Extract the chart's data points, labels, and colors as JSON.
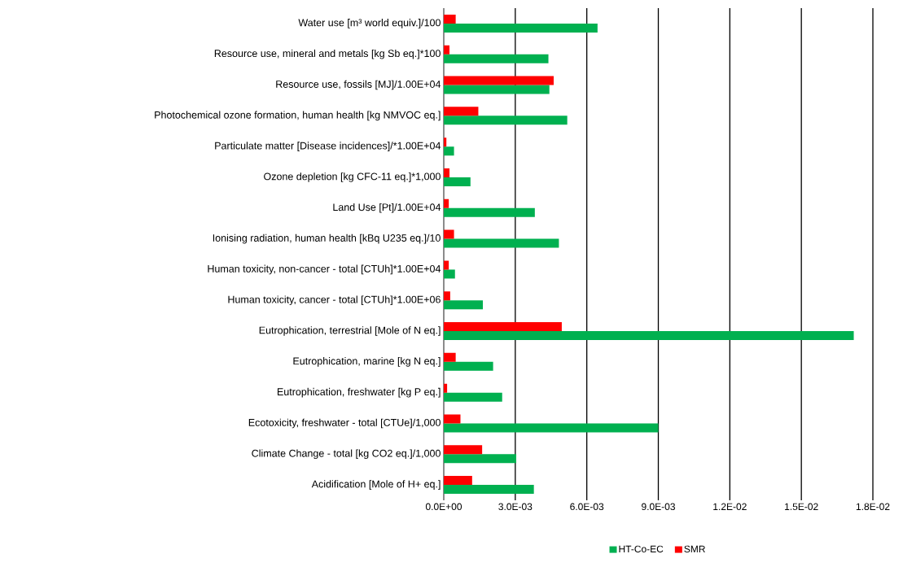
{
  "chart_data": {
    "type": "bar",
    "orientation": "horizontal",
    "categories": [
      "Water use [m³ world equiv.]/100",
      "Resource use, mineral and metals [kg Sb eq.]*100",
      "Resource use, fossils  [MJ]/1.00E+04",
      "Photochemical ozone formation, human health  [kg NMVOC eq.]",
      "Particulate matter [Disease incidences]/*1.00E+04",
      "Ozone depletion [kg CFC-11 eq.]*1,000",
      "Land Use [Pt]/1.00E+04",
      "Ionising radiation, human health [kBq U235 eq.]/10",
      "Human toxicity, non-cancer - total [CTUh]*1.00E+04",
      "Human toxicity, cancer - total [CTUh]*1.00E+06",
      "Eutrophication, terrestrial  [Mole of N eq.]",
      "Eutrophication, marine  [kg N eq.]",
      "Eutrophication, freshwater [kg P eq.]",
      "Ecotoxicity, freshwater - total [CTUe]/1,000",
      "Climate Change - total [kg CO2 eq.]/1,000",
      "Acidification  [Mole of H+ eq.]"
    ],
    "series": [
      {
        "name": "HT-Co-EC",
        "color": "#00b050",
        "values": [
          0.00645,
          0.00439,
          0.00443,
          0.00518,
          0.00043,
          0.00112,
          0.00382,
          0.00483,
          0.00047,
          0.00164,
          0.0172,
          0.00207,
          0.00245,
          0.009,
          0.00304,
          0.00378
        ]
      },
      {
        "name": "SMR",
        "color": "#ff0000",
        "values": [
          0.0005,
          0.00024,
          0.00461,
          0.00145,
          0.00011,
          0.00024,
          0.00021,
          0.00043,
          0.00021,
          0.00027,
          0.00495,
          0.0005,
          0.00014,
          0.0007,
          0.00161,
          0.00119
        ]
      }
    ],
    "xlim": [
      0,
      0.018
    ],
    "xticks": [
      {
        "value": 0,
        "label": "0.0E+00"
      },
      {
        "value": 0.003,
        "label": "3.0E-03"
      },
      {
        "value": 0.006,
        "label": "6.0E-03"
      },
      {
        "value": 0.009,
        "label": "9.0E-03"
      },
      {
        "value": 0.012,
        "label": "1.2E-02"
      },
      {
        "value": 0.015,
        "label": "1.5E-02"
      },
      {
        "value": 0.018,
        "label": "1.8E-02"
      }
    ],
    "grid": "x",
    "legend": "bottom"
  }
}
